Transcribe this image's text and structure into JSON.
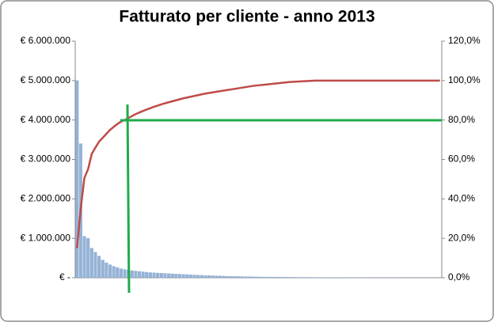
{
  "chart_data": {
    "type": "pareto",
    "title": "Fatturato per cliente - anno 2013",
    "categories": [
      null,
      null,
      null,
      null,
      null,
      null,
      null,
      null,
      null,
      null,
      null,
      null,
      null,
      null,
      null,
      null,
      null,
      null,
      null,
      null,
      null,
      null,
      null,
      null,
      null,
      null,
      null,
      null,
      null,
      null,
      null,
      null,
      null,
      null,
      null,
      null,
      null,
      null,
      null,
      null,
      null,
      null,
      null,
      null,
      null,
      null,
      null,
      null,
      null,
      null,
      null,
      null,
      null,
      null,
      null,
      null,
      null,
      null,
      null,
      null,
      null,
      null,
      null,
      null,
      null,
      null,
      null,
      null,
      null,
      null,
      null,
      null,
      null,
      null,
      null,
      null,
      null,
      null,
      null,
      null,
      null,
      null,
      null,
      null,
      null,
      null,
      null,
      null,
      null,
      null,
      null,
      null,
      null,
      null,
      null,
      null,
      null,
      null,
      null,
      null
    ],
    "series": [
      {
        "color": "#95b3d7",
        "values": [
          5000000,
          3400000,
          1050000,
          1000000,
          750000,
          650000,
          550000,
          450000,
          380000,
          330000,
          290000,
          260000,
          230000,
          210000,
          195000,
          180000,
          170000,
          160000,
          150000,
          140000,
          130000,
          125000,
          120000,
          115000,
          110000,
          105000,
          100000,
          95000,
          90000,
          85000,
          80000,
          75000,
          70000,
          66000,
          62000,
          58000,
          55000,
          52000,
          49000,
          46000,
          43000,
          38000,
          36000,
          34000,
          32000,
          30000,
          28000,
          26000,
          24000,
          22000,
          20000,
          19000,
          18000,
          17000,
          16000,
          15000,
          14000,
          13000,
          12000,
          11000,
          10000,
          9500,
          9000,
          8500,
          8000,
          7500,
          7000,
          6500,
          6000,
          5500,
          5000,
          4500,
          4000,
          3500,
          3000,
          2800,
          2600,
          2400,
          2200,
          2000,
          1800,
          1600,
          1400,
          1200,
          1000,
          900,
          800,
          700,
          600,
          500,
          400,
          350,
          300,
          250,
          200,
          150,
          100,
          80,
          50,
          20
        ]
      },
      {
        "color": "#be4b48",
        "axis": "y2",
        "values": [
          15,
          35,
          50.6,
          55,
          62.7,
          66,
          69,
          71,
          73,
          75,
          76.5,
          78,
          79.2,
          80,
          81,
          82,
          83,
          83.8,
          84.6,
          85.3,
          86,
          86.7,
          87.3,
          87.9,
          88.5,
          89,
          89.5,
          90,
          90.5,
          91,
          91.4,
          91.8,
          92.2,
          92.6,
          93,
          93.4,
          93.7,
          94,
          94.3,
          94.6,
          94.9,
          95.2,
          95.5,
          95.8,
          96.1,
          96.4,
          96.7,
          97,
          97.3,
          97.5,
          97.7,
          97.9,
          98.1,
          98.3,
          98.5,
          98.7,
          98.9,
          99.1,
          99.3,
          99.4,
          99.5,
          99.6,
          99.7,
          99.8,
          99.9,
          100,
          100,
          100,
          100,
          100,
          100,
          100,
          100,
          100,
          100,
          100,
          100,
          100,
          100,
          100,
          100,
          100,
          100,
          100,
          100,
          100,
          100,
          100,
          100,
          100,
          100,
          100,
          100,
          100,
          100,
          100,
          100,
          100,
          100,
          100
        ]
      }
    ],
    "ylim": [
      0,
      6000000
    ],
    "yticks": [
      {
        "value": 0,
        "label": "€ -"
      },
      {
        "value": 1000000,
        "label": "€ 1.000.000"
      },
      {
        "value": 2000000,
        "label": "€ 2.000.000"
      },
      {
        "value": 3000000,
        "label": "€ 3.000.000"
      },
      {
        "value": 4000000,
        "label": "€ 4.000.000"
      },
      {
        "value": 5000000,
        "label": "€ 5.000.000"
      },
      {
        "value": 6000000,
        "label": "€ 6.000.000"
      }
    ],
    "y2lim": [
      0,
      120
    ],
    "y2ticks": [
      {
        "value": 0,
        "label": "0,0%"
      },
      {
        "value": 20,
        "label": "20,0%"
      },
      {
        "value": 40,
        "label": "40,0%"
      },
      {
        "value": 60,
        "label": "60,0%"
      },
      {
        "value": 80,
        "label": "80,0%"
      },
      {
        "value": 100,
        "label": "100,0%"
      },
      {
        "value": 120,
        "label": "120,0%"
      }
    ]
  }
}
